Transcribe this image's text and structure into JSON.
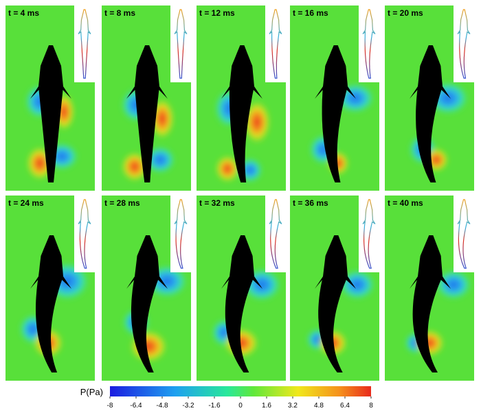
{
  "panels": [
    {
      "label": "t = 4 ms"
    },
    {
      "label": "t = 8 ms"
    },
    {
      "label": "t = 12 ms"
    },
    {
      "label": "t = 16 ms"
    },
    {
      "label": "t = 20 ms"
    },
    {
      "label": "t = 24 ms"
    },
    {
      "label": "t = 28 ms"
    },
    {
      "label": "t = 32 ms"
    },
    {
      "label": "t = 36 ms"
    },
    {
      "label": "t = 40 ms"
    }
  ],
  "colorbar": {
    "label": "P(Pa)",
    "range": [
      -8,
      8
    ],
    "ticks": [
      -8,
      -6.4,
      -4.8,
      -3.2,
      -1.6,
      0,
      1.6,
      3.2,
      4.8,
      6.4,
      8
    ]
  }
}
